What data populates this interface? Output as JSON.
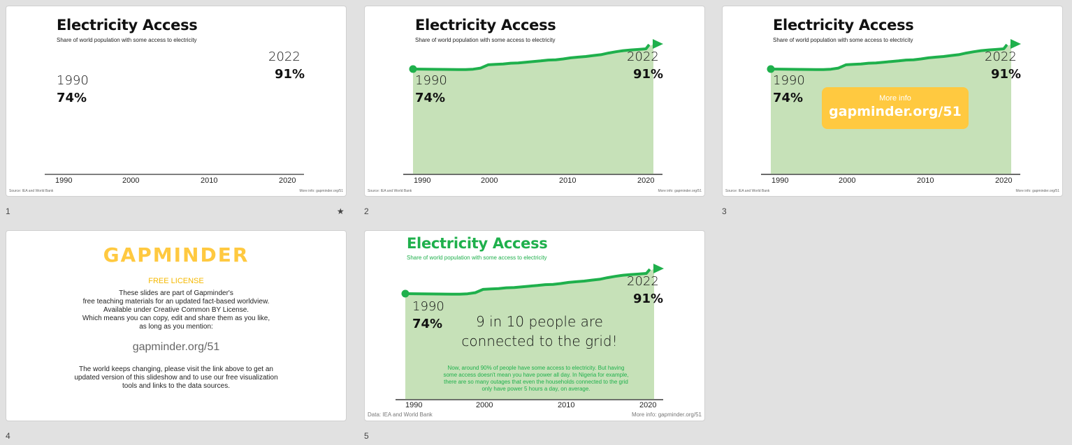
{
  "common": {
    "title": "Electricity Access",
    "subtitle": "Share of world population with some access to electricity",
    "start_year": "1990",
    "start_value": "74%",
    "end_year": "2022",
    "end_value": "91%",
    "ticks": [
      "1990",
      "2000",
      "2010",
      "2020"
    ],
    "source_small": "Source: IEA and World Bank",
    "more_small": "More info: gapminder.org/51",
    "line_color": "#1fb04c",
    "fill_color": "#c6e1b8",
    "accent_yellow": "#ffc940"
  },
  "slides": [
    {
      "number": "1",
      "star": " ★"
    },
    {
      "number": "2"
    },
    {
      "number": "3",
      "info_label": "More info",
      "info_url": "gapminder.org/51"
    },
    {
      "number": "4",
      "logo_text": "GAPMINDER",
      "license_heading": "FREE LICENSE",
      "license_lines": [
        "These slides are part of Gapminder's",
        "free teaching materials for an updated fact-based worldview.",
        "Available under Creative Common BY License.",
        "Which means you can copy, edit and share them as you like,",
        "as long as you mention:"
      ],
      "license_url": "gapminder.org/51",
      "footer_lines": [
        "The world keeps changing, please visit the link above to get an",
        "updated version of this slideshow and to use our free visualization",
        "tools and links to the data sources."
      ]
    },
    {
      "number": "5",
      "big_lines": [
        "9 in 10 people are",
        "connected to the grid!"
      ],
      "small_lines": [
        "Now, around 90% of people have some access to electricity. But having",
        "some access doesn't mean you have power all day. In Nigeria for example,",
        "there are so many outages that even the households connected to the grid",
        "only have power 5 hours a day, on average."
      ],
      "source": "Data: IEA and World Bank",
      "more": "More info: gapminder.org/51"
    }
  ],
  "chart_data": {
    "type": "area",
    "title": "Electricity Access",
    "subtitle": "Share of world population with some access to electricity",
    "x": [
      1990,
      1992,
      1994,
      1996,
      1997,
      1998,
      1999,
      2000,
      2001,
      2002,
      2003,
      2004,
      2005,
      2006,
      2007,
      2008,
      2009,
      2010,
      2011,
      2012,
      2013,
      2014,
      2015,
      2016,
      2017,
      2018,
      2019,
      2020,
      2021,
      2022
    ],
    "y": [
      74,
      73.9,
      73.8,
      73.7,
      73.7,
      73.9,
      74.6,
      76.6,
      76.9,
      77.1,
      77.6,
      77.7,
      78.2,
      78.6,
      79,
      79.5,
      79.7,
      80.2,
      80.9,
      81.3,
      81.7,
      82.3,
      82.8,
      83.8,
      84.6,
      85.3,
      85.7,
      86,
      86.4,
      91
    ],
    "xlim": [
      1990,
      2022
    ],
    "ylim": [
      0,
      91
    ],
    "line_color": "#1fb04c",
    "fill_color": "#c6e1b8"
  }
}
